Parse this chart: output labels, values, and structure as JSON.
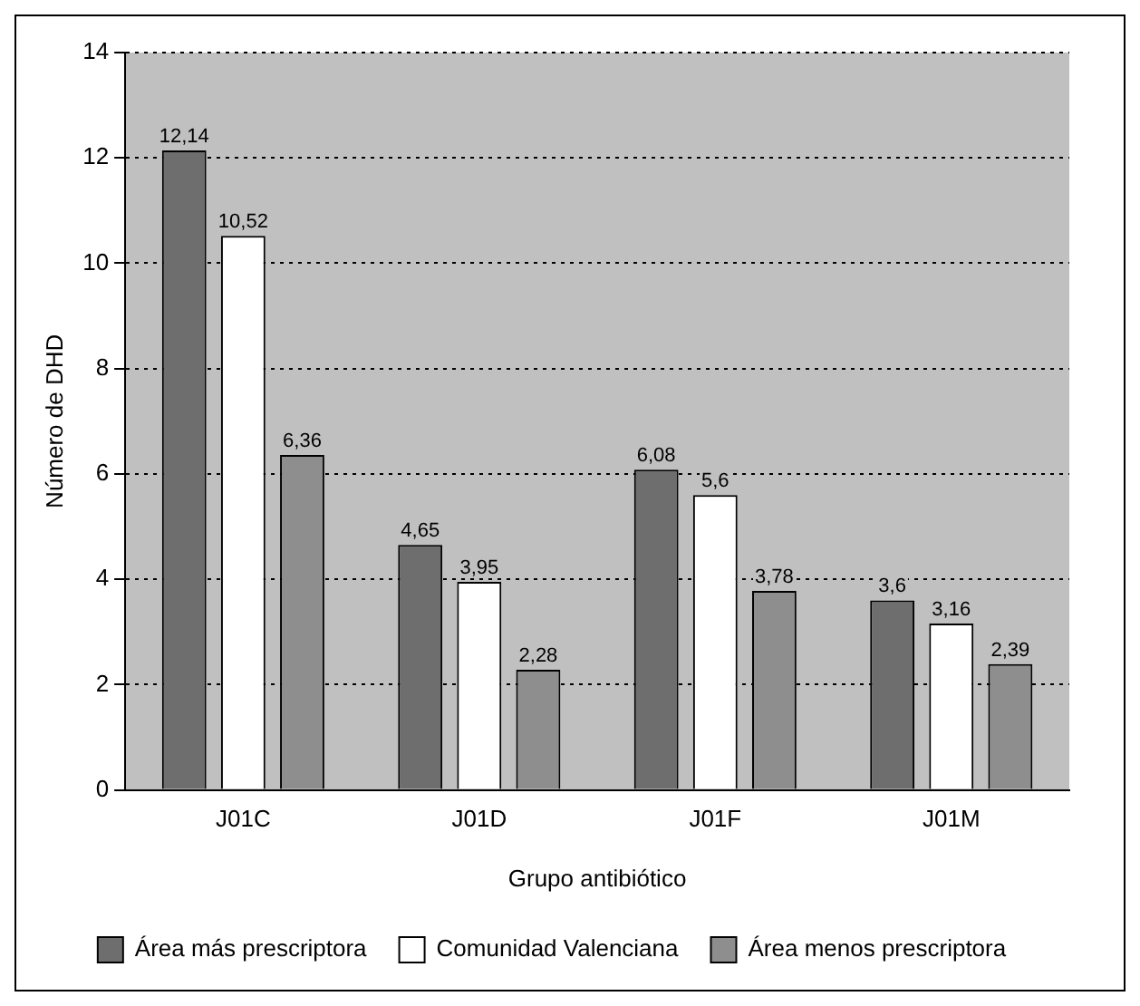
{
  "chart_data": {
    "type": "bar",
    "xlabel": "Grupo antibiótico",
    "ylabel": "Número de DHD",
    "categories": [
      "J01C",
      "J01D",
      "J01F",
      "J01M"
    ],
    "series": [
      {
        "name": "Área más prescriptora",
        "color": "#6e6e6e",
        "values": [
          12.14,
          4.65,
          6.08,
          3.6
        ],
        "value_labels": [
          "12,14",
          "4,65",
          "6,08",
          "3,6"
        ]
      },
      {
        "name": "Comunidad Valenciana",
        "color": "#ffffff",
        "values": [
          10.52,
          3.95,
          5.6,
          3.16
        ],
        "value_labels": [
          "10,52",
          "3,95",
          "5,6",
          "3,16"
        ]
      },
      {
        "name": "Área menos prescriptora",
        "color": "#8e8e8e",
        "values": [
          6.36,
          2.28,
          3.78,
          2.39
        ],
        "value_labels": [
          "6,36",
          "2,28",
          "3,78",
          "2,39"
        ]
      }
    ],
    "ylim": [
      0,
      14
    ],
    "yticks": [
      0,
      2,
      4,
      6,
      8,
      10,
      12,
      14
    ],
    "grid": "y",
    "legend": "bottom"
  }
}
